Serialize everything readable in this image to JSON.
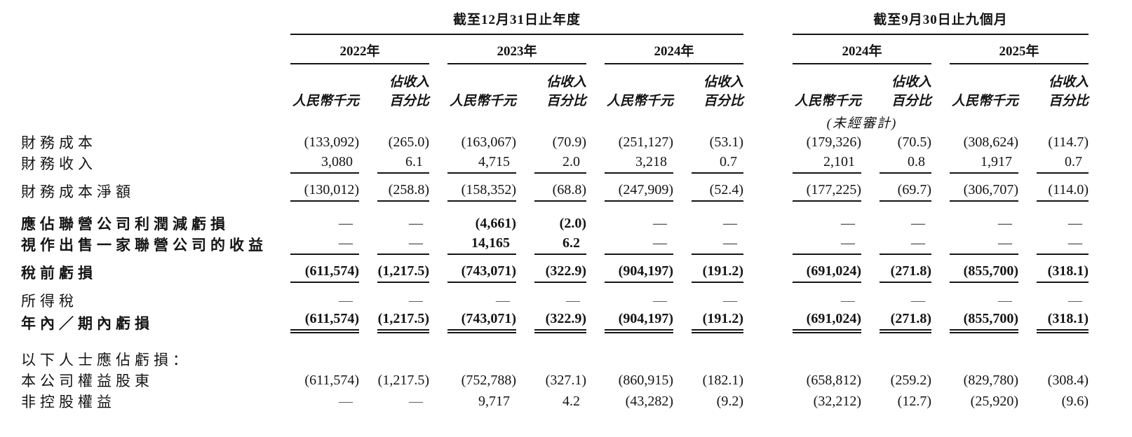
{
  "table": {
    "col_groups": [
      {
        "title": "截至12月31日止年度",
        "years": [
          "2022年",
          "2023年",
          "2024年"
        ]
      },
      {
        "title": "截至9月30日止九個月",
        "years": [
          "2024年",
          "2025年"
        ]
      }
    ],
    "unit_rmb": "人民幣千元",
    "unit_pct_line1": "佔收入",
    "unit_pct_line2": "百分比",
    "unaudited_note": "(未經審計)",
    "rows": [
      {
        "label": "財務成本",
        "bold": false,
        "rule": "none",
        "values": [
          "(133,092)",
          "(265.0)",
          "(163,067)",
          "(70.9)",
          "(251,127)",
          "(53.1)",
          "(179,326)",
          "(70.5)",
          "(308,624)",
          "(114.7)"
        ]
      },
      {
        "label": "財務收入",
        "bold": false,
        "rule": "single",
        "values": [
          "3,080",
          "6.1",
          "4,715",
          "2.0",
          "3,218",
          "0.7",
          "2,101",
          "0.8",
          "1,917",
          "0.7"
        ]
      },
      {
        "label": "財務成本淨額",
        "bold": false,
        "rule": "single",
        "values": [
          "(130,012)",
          "(258.8)",
          "(158,352)",
          "(68.8)",
          "(247,909)",
          "(52.4)",
          "(177,225)",
          "(69.7)",
          "(306,707)",
          "(114.0)"
        ]
      },
      {
        "label": "應佔聯營公司利潤減虧損",
        "bold": true,
        "rule": "none",
        "values": [
          "—",
          "—",
          "(4,661)",
          "(2.0)",
          "—",
          "—",
          "—",
          "—",
          "—",
          "—"
        ]
      },
      {
        "label": "視作出售一家聯營公司的收益",
        "bold": true,
        "rule": "single",
        "values": [
          "—",
          "—",
          "14,165",
          "6.2",
          "—",
          "—",
          "—",
          "—",
          "—",
          "—"
        ]
      },
      {
        "label": "稅前虧損",
        "bold": true,
        "rule": "single",
        "values": [
          "(611,574)",
          "(1,217.5)",
          "(743,071)",
          "(322.9)",
          "(904,197)",
          "(191.2)",
          "(691,024)",
          "(271.8)",
          "(855,700)",
          "(318.1)"
        ]
      },
      {
        "label": "所得稅",
        "bold": false,
        "rule": "none",
        "values": [
          "—",
          "—",
          "—",
          "—",
          "—",
          "—",
          "—",
          "—",
          "—",
          "—"
        ]
      },
      {
        "label": "年內／期內虧損",
        "bold": true,
        "rule": "double",
        "values": [
          "(611,574)",
          "(1,217.5)",
          "(743,071)",
          "(322.9)",
          "(904,197)",
          "(191.2)",
          "(691,024)",
          "(271.8)",
          "(855,700)",
          "(318.1)"
        ]
      },
      {
        "label": "以下人士應佔虧損：",
        "bold": false,
        "rule": "none",
        "values": [
          "",
          "",
          "",
          "",
          "",
          "",
          "",
          "",
          "",
          ""
        ]
      },
      {
        "label": "本公司權益股東",
        "bold": false,
        "rule": "none",
        "values": [
          "(611,574)",
          "(1,217.5)",
          "(752,788)",
          "(327.1)",
          "(860,915)",
          "(182.1)",
          "(658,812)",
          "(259.2)",
          "(829,780)",
          "(308.4)"
        ]
      },
      {
        "label": "非控股權益",
        "bold": false,
        "rule": "none",
        "values": [
          "—",
          "—",
          "9,717",
          "4.2",
          "(43,282)",
          "(9.2)",
          "(32,212)",
          "(12.7)",
          "(25,920)",
          "(9.6)"
        ]
      }
    ]
  }
}
